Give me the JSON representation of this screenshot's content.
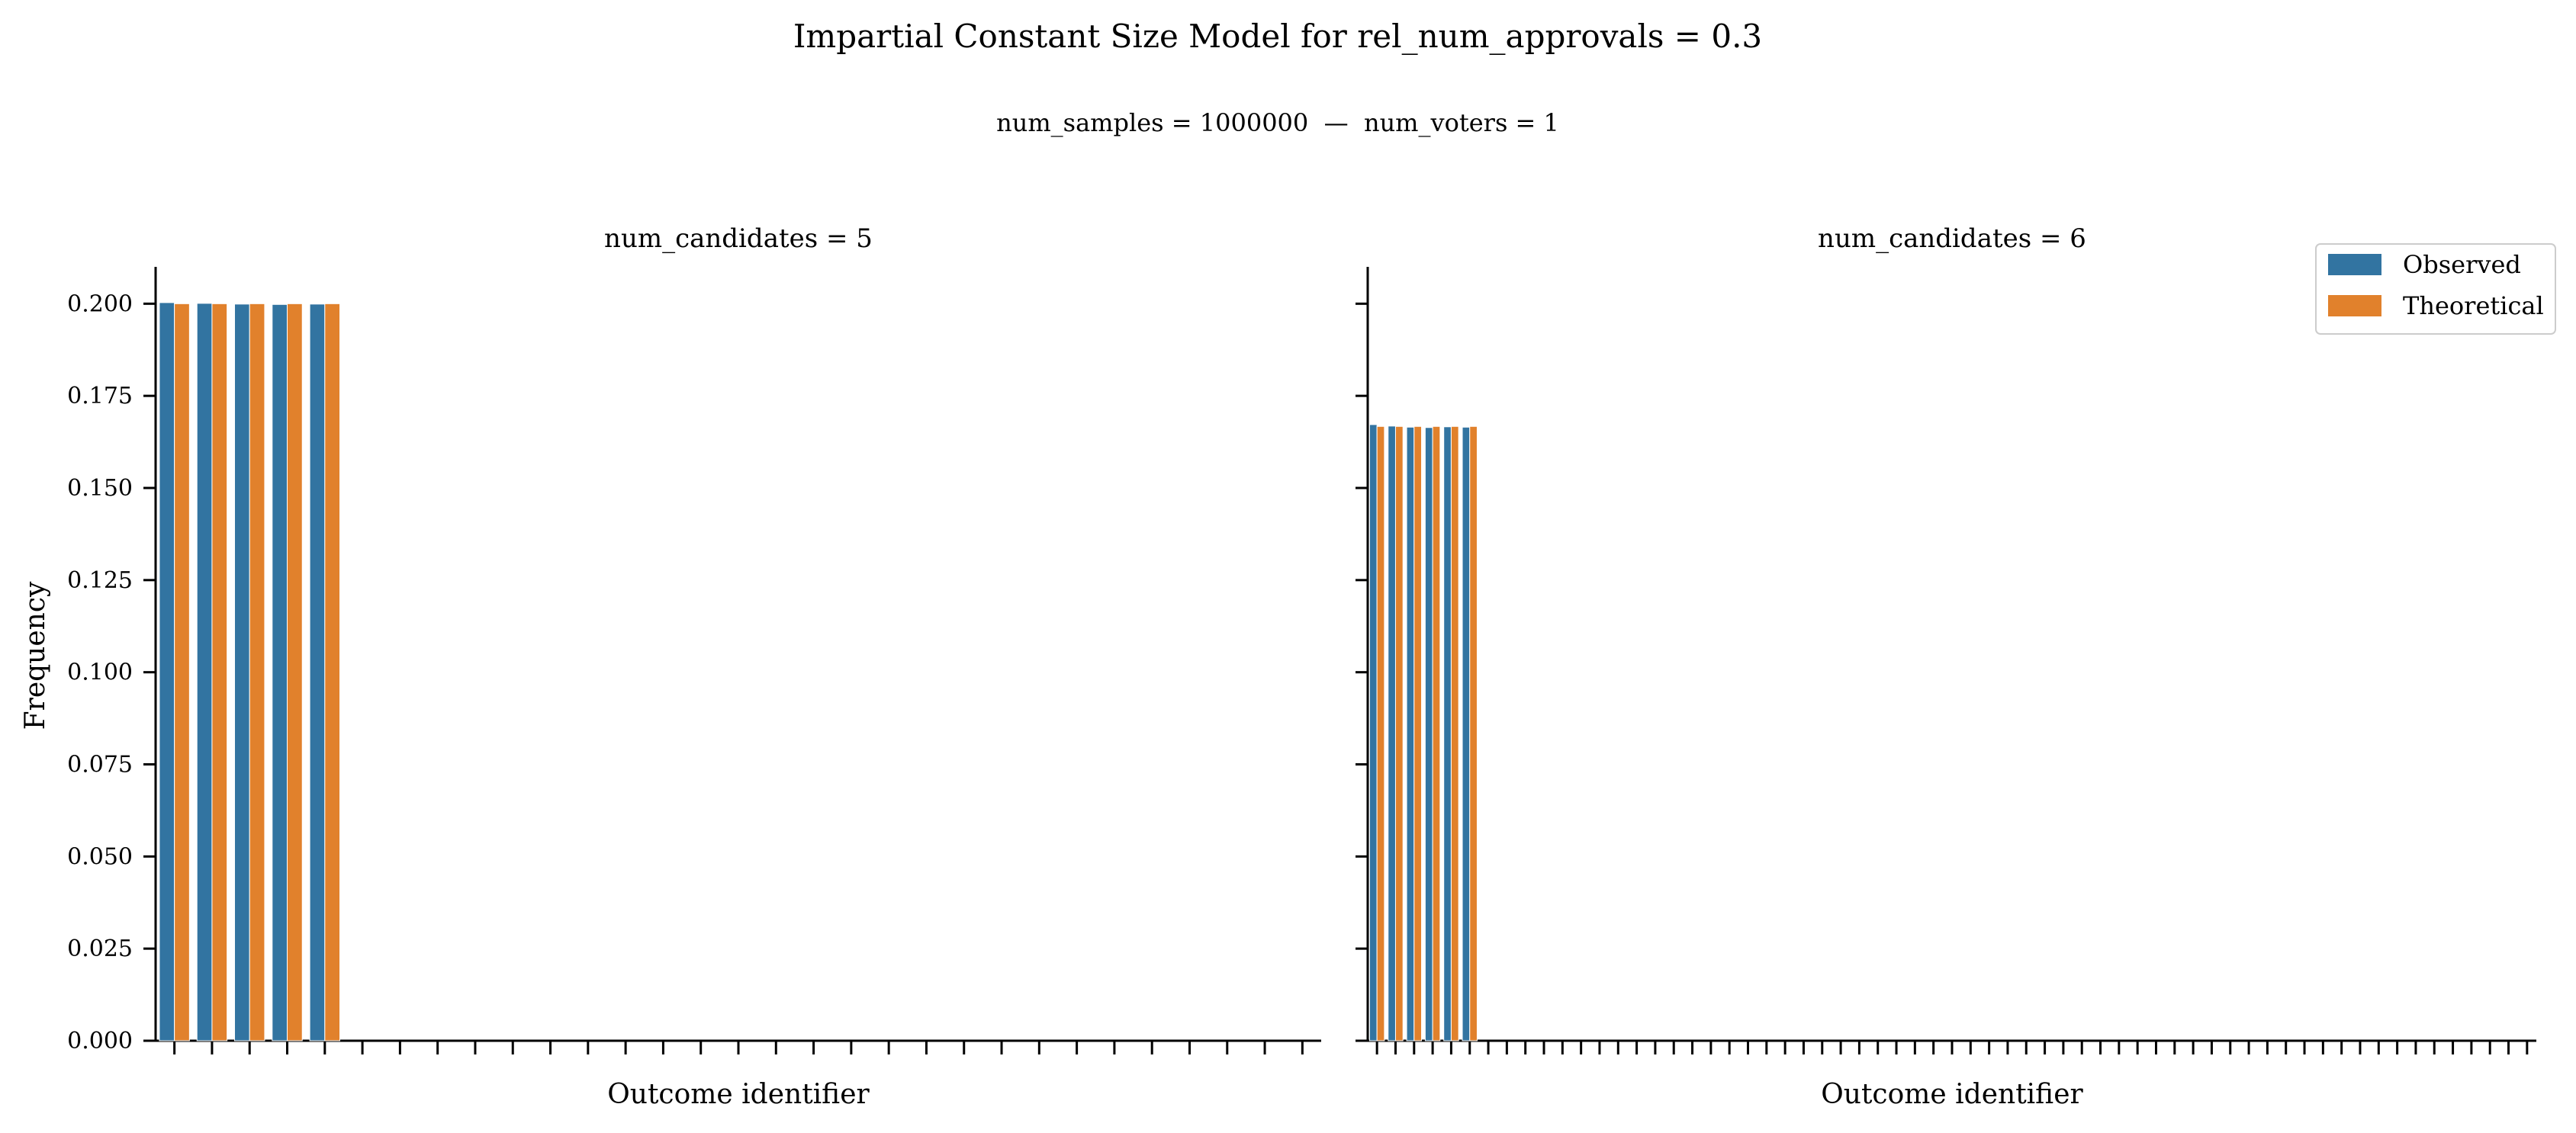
{
  "title": "Impartial Constant Size Model for rel_num_approvals = 0.3",
  "subtitle": "num_samples = 1000000  —  num_voters = 1",
  "legend": {
    "entries": [
      "Observed",
      "Theoretical"
    ],
    "placement": "top-right"
  },
  "colors": {
    "Observed": "#3274a1",
    "Theoretical": "#e1812c"
  },
  "chart_data": [
    {
      "type": "bar",
      "title": "num_candidates = 5",
      "xlabel": "Outcome identifier",
      "ylabel": "Frequency",
      "ylim": [
        0,
        0.21
      ],
      "yticks": [
        "0.000",
        "0.025",
        "0.050",
        "0.075",
        "0.100",
        "0.125",
        "0.150",
        "0.175",
        "0.200"
      ],
      "x_tick_count": 31,
      "categories": [
        0,
        1,
        2,
        3,
        4
      ],
      "series": [
        {
          "name": "Observed",
          "values": [
            0.2003,
            0.2001,
            0.1999,
            0.1998,
            0.1999
          ]
        },
        {
          "name": "Theoretical",
          "values": [
            0.2,
            0.2,
            0.2,
            0.2,
            0.2
          ]
        }
      ],
      "grid": false
    },
    {
      "type": "bar",
      "title": "num_candidates = 6",
      "xlabel": "Outcome identifier",
      "ylabel": "",
      "ylim": [
        0,
        0.21
      ],
      "yticks": [
        "0.000",
        "0.025",
        "0.050",
        "0.075",
        "0.100",
        "0.125",
        "0.150",
        "0.175",
        "0.200"
      ],
      "x_tick_count": 63,
      "categories": [
        0,
        1,
        2,
        3,
        4,
        5
      ],
      "series": [
        {
          "name": "Observed",
          "values": [
            0.1672,
            0.1668,
            0.1665,
            0.1664,
            0.1666,
            0.1665
          ]
        },
        {
          "name": "Theoretical",
          "values": [
            0.1667,
            0.1667,
            0.1667,
            0.1667,
            0.1667,
            0.1667
          ]
        }
      ],
      "grid": false
    }
  ]
}
